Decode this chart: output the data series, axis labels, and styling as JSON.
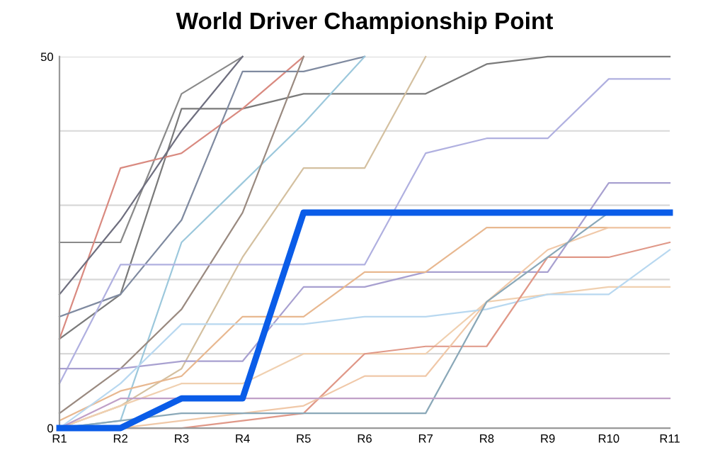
{
  "chart_data": {
    "type": "line",
    "title": "World Driver Championship Point",
    "categories": [
      "R1",
      "R2",
      "R3",
      "R4",
      "R5",
      "R6",
      "R7",
      "R8",
      "R9",
      "R10",
      "R11"
    ],
    "ylim": [
      0,
      50
    ],
    "yticks": [
      0,
      {
        "value": 10,
        "label": null
      },
      {
        "value": 20,
        "label": null
      },
      {
        "value": 30,
        "label": null
      },
      {
        "value": 40,
        "label": null
      },
      50
    ],
    "grid": "y",
    "marker": "none",
    "line_style": "solid",
    "legend": false,
    "series": [
      {
        "color": "#8a8a8a",
        "values": [
          25,
          25,
          45,
          50,
          null,
          null,
          null,
          null,
          null,
          null,
          null
        ]
      },
      {
        "color": "#7a7a7a",
        "values": [
          12,
          18,
          43,
          43,
          45,
          45,
          45,
          49,
          50,
          50,
          50
        ]
      },
      {
        "color": "#d98a80",
        "values": [
          12,
          35,
          37,
          43,
          50,
          null,
          null,
          null,
          null,
          null,
          null
        ]
      },
      {
        "color": "#6f6f7f",
        "values": [
          18,
          28,
          40,
          50,
          null,
          null,
          null,
          null,
          null,
          null,
          null
        ]
      },
      {
        "color": "#7f8aa0",
        "values": [
          15,
          18,
          28,
          48,
          48,
          50,
          null,
          null,
          null,
          null,
          null
        ]
      },
      {
        "color": "#9cc8dc",
        "values": [
          0,
          1,
          25,
          33,
          41,
          50,
          null,
          null,
          null,
          null,
          null
        ]
      },
      {
        "color": "#9a8a80",
        "values": [
          2,
          8,
          16,
          29,
          50,
          null,
          null,
          null,
          null,
          null,
          null
        ]
      },
      {
        "color": "#d4c0a0",
        "values": [
          0,
          3,
          8,
          23,
          35,
          35,
          50,
          null,
          null,
          null,
          null
        ]
      },
      {
        "color": "#b0b0e0",
        "values": [
          6,
          22,
          22,
          22,
          22,
          22,
          37,
          39,
          39,
          47,
          47
        ]
      },
      {
        "color": "#a8a0d0",
        "values": [
          8,
          8,
          9,
          9,
          19,
          19,
          21,
          21,
          21,
          33,
          33
        ]
      },
      {
        "color": "#e8b890",
        "values": [
          1,
          5,
          7,
          15,
          15,
          21,
          21,
          27,
          27,
          27,
          27
        ]
      },
      {
        "color": "#f0d0b0",
        "values": [
          0,
          3,
          6,
          6,
          10,
          10,
          10,
          17,
          18,
          19,
          19
        ]
      },
      {
        "color": "#b8d8f0",
        "values": [
          0,
          6,
          14,
          14,
          14,
          15,
          15,
          16,
          18,
          18,
          24
        ]
      },
      {
        "color": "#e09888",
        "values": [
          0,
          0,
          0,
          1,
          2,
          10,
          11,
          11,
          23,
          23,
          25
        ]
      },
      {
        "color": "#f0c8a8",
        "values": [
          0,
          0,
          1,
          2,
          3,
          7,
          7,
          17,
          24,
          27,
          27
        ]
      },
      {
        "color": "#8aa8b8",
        "values": [
          0,
          1,
          2,
          2,
          2,
          2,
          2,
          17,
          23,
          29,
          null
        ]
      },
      {
        "color": "#c0a0c8",
        "values": [
          0,
          4,
          4,
          4,
          4,
          4,
          4,
          4,
          4,
          4,
          4
        ]
      },
      {
        "color": "#0a5ce8",
        "values": [
          0,
          0,
          4,
          4,
          29,
          29,
          29,
          29,
          29,
          29,
          29
        ]
      }
    ]
  }
}
